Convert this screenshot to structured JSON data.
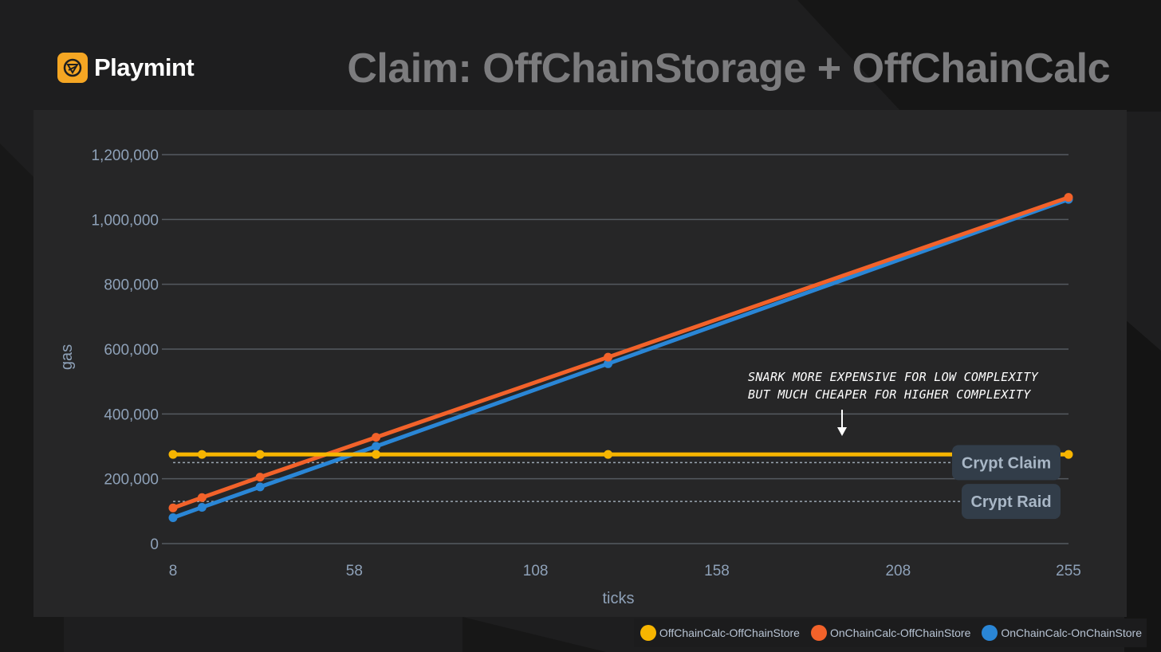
{
  "brand": {
    "name": "Playmint",
    "logo_icon": "playmint-logo-icon"
  },
  "slide_title": "Claim: OffChainStorage + OffChainCalc",
  "annotation": {
    "line1": "SNARK MORE EXPENSIVE FOR LOW COMPLEXITY",
    "line2": "BUT MUCH CHEAPER FOR HIGHER COMPLEXITY"
  },
  "colors": {
    "offchain_offchain": "#f7b500",
    "onchain_offchain": "#f2622a",
    "onchain_onchain": "#2a86d6",
    "grid": "#555a60",
    "tick": "#8ea1b8",
    "ref_box": "#323d49",
    "ref_text": "#a9b7c6"
  },
  "chart_data": {
    "type": "line",
    "xlabel": "ticks",
    "ylabel": "gas",
    "xlim": [
      8,
      255
    ],
    "ylim": [
      0,
      1200000
    ],
    "x_ticks": [
      8,
      58,
      108,
      158,
      208,
      255
    ],
    "y_ticks": [
      0,
      200000,
      400000,
      600000,
      800000,
      1000000,
      1200000
    ],
    "x_tick_labels": [
      "8",
      "58",
      "108",
      "158",
      "208",
      "255"
    ],
    "y_tick_labels": [
      "0",
      "200,000",
      "400,000",
      "600,000",
      "800,000",
      "1,000,000",
      "1,200,000"
    ],
    "grid": true,
    "legend": "bottom-right",
    "series": [
      {
        "name": "OffChainCalc-OffChainStore",
        "x": [
          8,
          16,
          32,
          64,
          128,
          255
        ],
        "y": [
          275000,
          275000,
          275000,
          275000,
          275000,
          275000
        ]
      },
      {
        "name": "OnChainCalc-OffChainStore",
        "x": [
          8,
          16,
          32,
          64,
          128,
          255
        ],
        "y": [
          110000,
          142000,
          205000,
          328000,
          575000,
          1068000
        ]
      },
      {
        "name": "OnChainCalc-OnChainStore",
        "x": [
          8,
          16,
          32,
          64,
          128,
          255
        ],
        "y": [
          80000,
          112000,
          175000,
          300000,
          555000,
          1062000
        ]
      }
    ],
    "reference_lines": [
      {
        "label": "Crypt Claim",
        "y": 250000
      },
      {
        "label": "Crypt Raid",
        "y": 130000
      }
    ]
  }
}
